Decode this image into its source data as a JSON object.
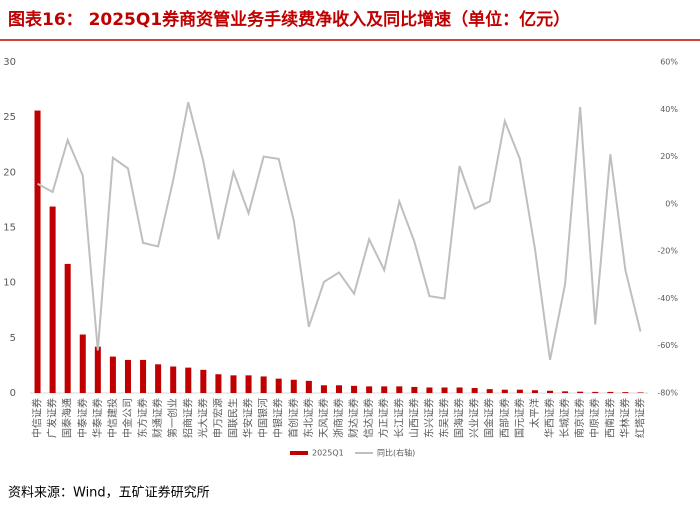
{
  "chart_data": {
    "type": "bar-line",
    "title": "图表16： 2025Q1券商资管业务手续费净收入及同比增速（单位：亿元）",
    "source": "资料来源：Wind，五矿证券研究所",
    "categories": [
      "中信证券",
      "广发证券",
      "国泰海通",
      "中泰证券",
      "华泰证券",
      "中信建投",
      "中金公司",
      "东方证券",
      "财通证券",
      "第一创业",
      "招商证券",
      "光大证券",
      "申万宏源",
      "国联民生",
      "华安证券",
      "中国银河",
      "中银证券",
      "首创证券",
      "东北证券",
      "天风证券",
      "浙商证券",
      "财达证券",
      "信达证券",
      "方正证券",
      "长江证券",
      "山西证券",
      "东兴证券",
      "东吴证券",
      "国海证券",
      "兴业证券",
      "国金证券",
      "西部证券",
      "国元证券",
      "太平洋",
      "华西证券",
      "长城证券",
      "南京证券",
      "中原证券",
      "西南证券",
      "华林证券",
      "红塔证券"
    ],
    "series": [
      {
        "name": "2025Q1",
        "color": "#c00000",
        "values": [
          25.6,
          16.9,
          11.7,
          5.3,
          4.2,
          3.3,
          3.0,
          3.0,
          2.6,
          2.4,
          2.3,
          2.1,
          1.7,
          1.6,
          1.6,
          1.5,
          1.3,
          1.2,
          1.1,
          0.7,
          0.7,
          0.65,
          0.6,
          0.6,
          0.6,
          0.55,
          0.5,
          0.5,
          0.5,
          0.45,
          0.35,
          0.3,
          0.3,
          0.25,
          0.2,
          0.15,
          0.12,
          0.1,
          0.1,
          0.08,
          0.05
        ]
      },
      {
        "name": "同比(右轴)",
        "color": "#bfbfbf",
        "axis": "y2",
        "values": [
          8.5,
          5,
          27,
          12,
          -62,
          19.5,
          15,
          -16.5,
          -18,
          10,
          43,
          18,
          -15,
          13.5,
          -4,
          20,
          19,
          -7,
          -52,
          -33,
          -29,
          -38,
          -15,
          -28,
          1,
          -16,
          -39,
          -40,
          16,
          -2,
          1,
          35,
          19,
          -19,
          -66,
          -34,
          41,
          -51,
          21,
          -28,
          -54
        ]
      }
    ],
    "ylim": [
      0,
      30
    ],
    "yticks": [
      0,
      5,
      10,
      15,
      20,
      25,
      30
    ],
    "y2lim": [
      -80,
      60
    ],
    "y2ticks": [
      {
        "value": -80,
        "label": "-80%"
      },
      {
        "value": -60,
        "label": "-60%"
      },
      {
        "value": -40,
        "label": "-40%"
      },
      {
        "value": -20,
        "label": "-20%"
      },
      {
        "value": 0,
        "label": "0%"
      },
      {
        "value": 20,
        "label": "20%"
      },
      {
        "value": 40,
        "label": "40%"
      },
      {
        "value": 60,
        "label": "60%"
      }
    ]
  }
}
